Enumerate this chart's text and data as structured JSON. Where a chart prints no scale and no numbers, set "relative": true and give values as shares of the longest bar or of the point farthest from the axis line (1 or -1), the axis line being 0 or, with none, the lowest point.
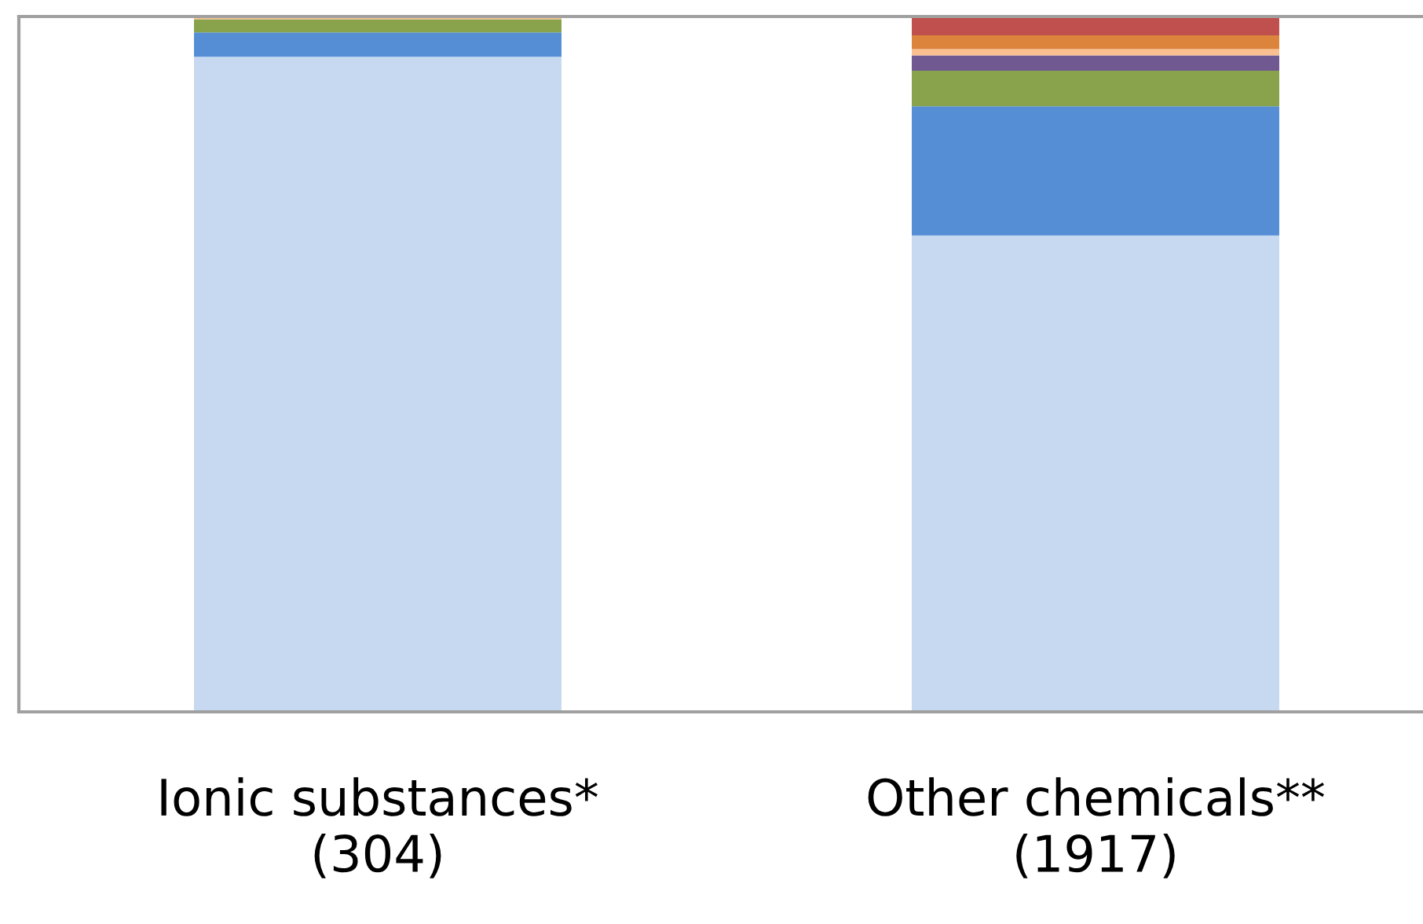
{
  "chart_data": {
    "type": "bar",
    "stacked": true,
    "relative": true,
    "tick_labels": "x",
    "categories": [
      "Ionic substances*\n(304)",
      "Other chemicals**\n(1917)"
    ],
    "series": [
      {
        "color": "#c6d9f0",
        "values": [
          0.942,
          0.685
        ]
      },
      {
        "color": "#558ed5",
        "values": [
          0.035,
          0.186
        ]
      },
      {
        "color": "#88a34c",
        "values": [
          0.019,
          0.051
        ]
      },
      {
        "color": "#705891",
        "values": [
          0,
          0.022
        ]
      },
      {
        "color": "#fac090",
        "values": [
          0.004,
          0.009
        ]
      },
      {
        "color": "#dc843b",
        "values": [
          0,
          0.02
        ]
      },
      {
        "color": "#c0504d",
        "values": [
          0,
          0.026
        ]
      }
    ]
  }
}
